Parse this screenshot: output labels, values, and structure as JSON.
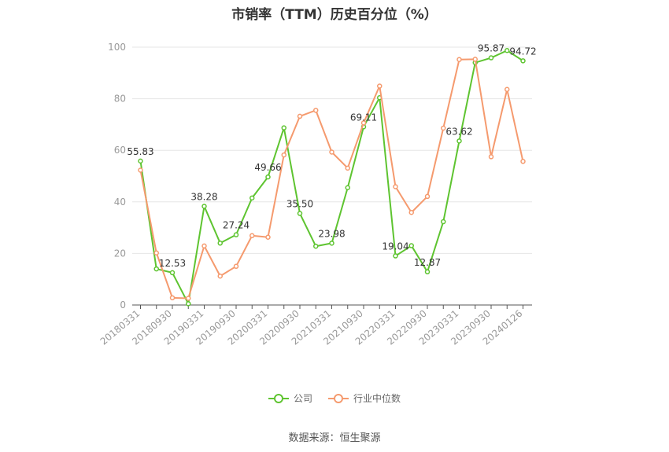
{
  "chart_data": {
    "type": "line",
    "title": "市销率（TTM）历史百分位（%）",
    "source": "数据来源：恒生聚源",
    "ylim": [
      0,
      100
    ],
    "yticks": [
      "0",
      "20",
      "40",
      "60",
      "80",
      "100"
    ],
    "xtick_labels": [
      "20180331",
      "20180930",
      "20190331",
      "20190930",
      "20200331",
      "20200930",
      "20210331",
      "20210930",
      "20220331",
      "20220930",
      "20230331",
      "20230930",
      "20240126"
    ],
    "grid": true,
    "legend_position": "bottom",
    "series": [
      {
        "name": "公司",
        "color": "#5ec430",
        "values": [
          55.83,
          14.0,
          12.53,
          0.5,
          38.28,
          24.0,
          27.24,
          41.5,
          49.66,
          68.7,
          35.5,
          22.8,
          23.98,
          45.5,
          69.11,
          80.4,
          19.04,
          23.0,
          12.87,
          32.3,
          63.62,
          94.0,
          95.87,
          98.7,
          94.72
        ],
        "labels": [
          "55.83",
          "",
          "12.53",
          "",
          "38.28",
          "",
          "27.24",
          "",
          "49.66",
          "",
          "35.50",
          "",
          "23.98",
          "",
          "69.11",
          "",
          "19.04",
          "",
          "12.87",
          "",
          "63.62",
          "",
          "95.87",
          "",
          "94.72"
        ]
      },
      {
        "name": "行业中位数",
        "color": "#f59a6e",
        "values": [
          52.3,
          20.2,
          2.8,
          2.6,
          22.9,
          11.2,
          15.0,
          26.9,
          26.3,
          58.2,
          73.2,
          75.5,
          59.3,
          53.1,
          70.6,
          84.9,
          45.9,
          35.9,
          42.1,
          68.6,
          95.2,
          95.3,
          57.5,
          83.6,
          55.7
        ]
      }
    ]
  }
}
